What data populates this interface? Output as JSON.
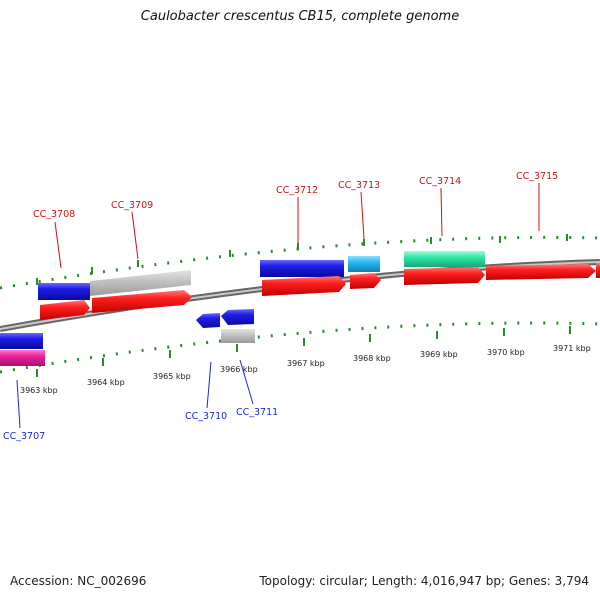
{
  "title": "Caulobacter crescentus CB15, complete genome",
  "footer": {
    "accession": "Accession: NC_002696",
    "stats": "Topology: circular; Length: 4,016,947 bp; Genes: 3,794"
  },
  "scale_labels": [
    "3963 kbp",
    "3964 kbp",
    "3965 kbp",
    "3966 kbp",
    "3967 kbp",
    "3968 kbp",
    "3969 kbp",
    "3970 kbp",
    "3971 kbp"
  ],
  "gene_labels": {
    "top": [
      "CC_3708",
      "CC_3709",
      "CC_3712",
      "CC_3713",
      "CC_3714",
      "CC_3715"
    ],
    "bottom": [
      "CC_3707",
      "CC_3710",
      "CC_3711"
    ]
  },
  "colors": {
    "feature_red": "#e8141c",
    "feature_blue": "#1a1ad8",
    "feature_gray": "#bdbdbd",
    "feature_cyan": "#22b6ee",
    "feature_green": "#2fe6a8",
    "feature_magenta": "#e8219a",
    "tick_green": "#2a8a2a",
    "label_red": "#cc1111",
    "label_blue": "#1a2ad0"
  }
}
